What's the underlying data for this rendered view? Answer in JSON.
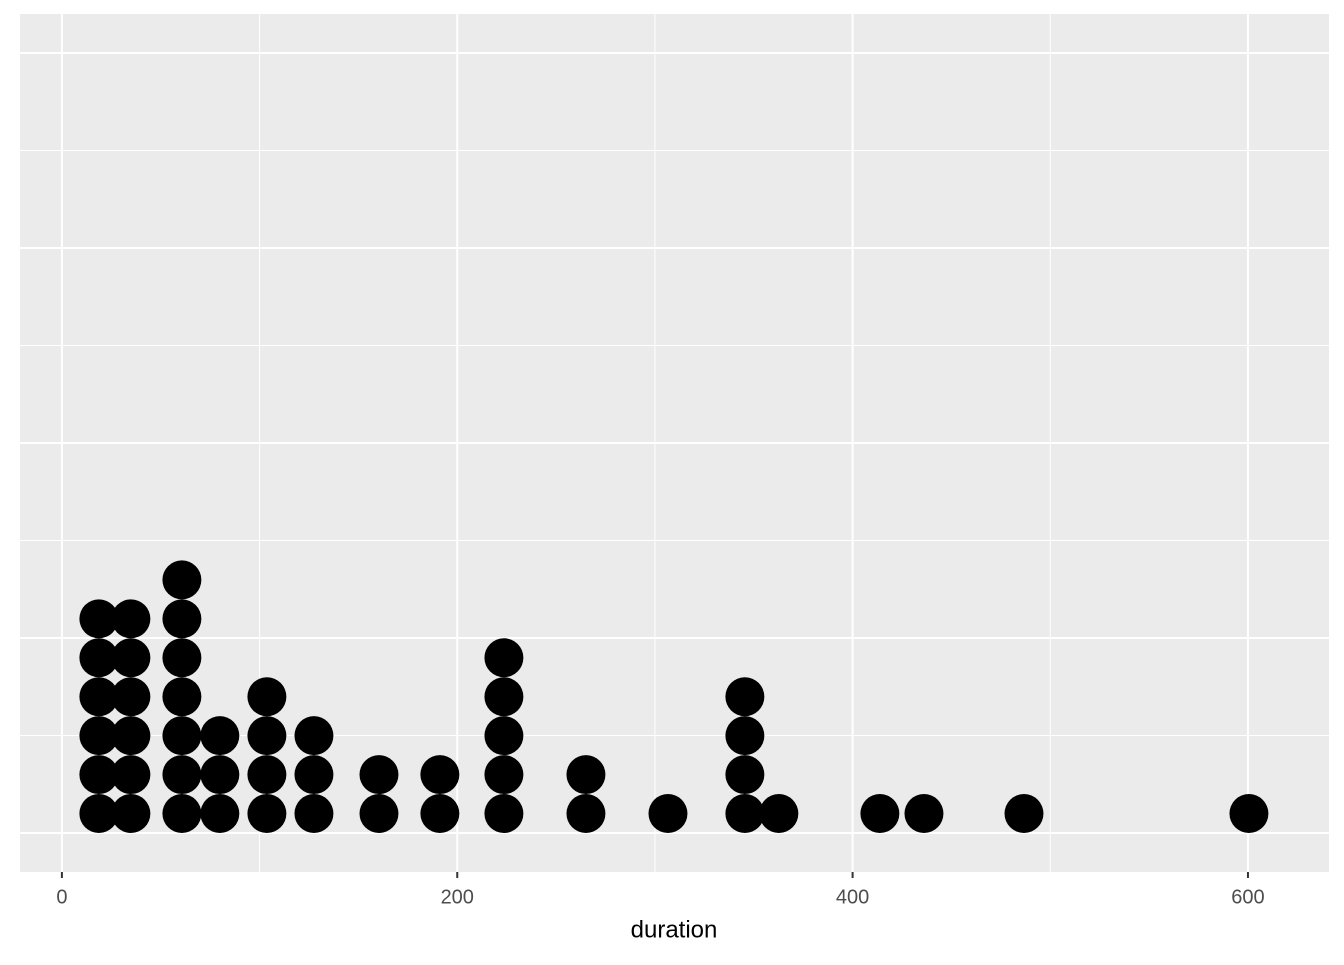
{
  "chart_data": {
    "type": "dotplot",
    "x_label": "duration",
    "x": [
      18.7,
      34.9,
      60.7,
      79.9,
      103.7,
      127.5,
      160.4,
      191.2,
      223.6,
      265.1,
      306.6,
      345.5,
      362.7,
      413.8,
      436.1,
      486.7,
      600.5
    ],
    "values": [
      6,
      6,
      7,
      3,
      4,
      3,
      2,
      2,
      5,
      2,
      1,
      4,
      1,
      1,
      1,
      1,
      1
    ],
    "color": "#000000",
    "binwidth": 19.7,
    "xlim": [
      -21.2,
      641
    ],
    "xticks": [
      0,
      200,
      400,
      600
    ],
    "ylim": [
      -0.05,
      1.05
    ],
    "yticks": [
      0,
      0.25,
      0.5,
      0.75,
      1
    ],
    "grid": true
  }
}
